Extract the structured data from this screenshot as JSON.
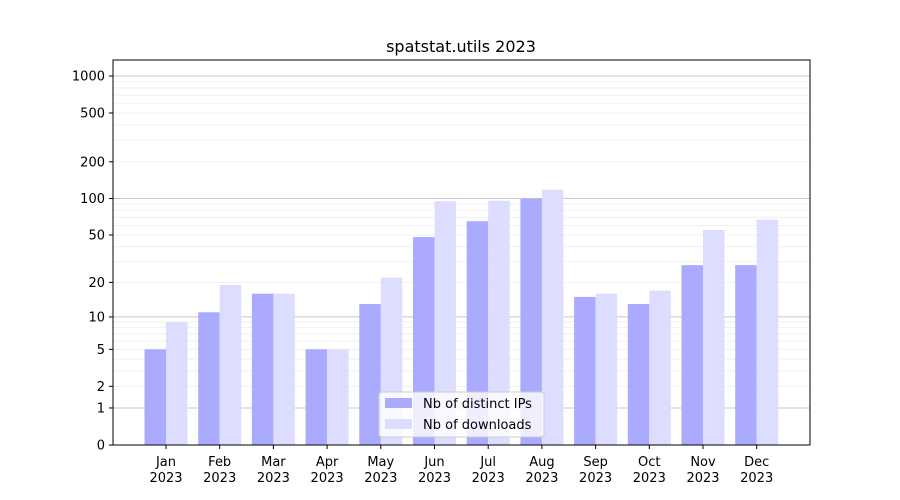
{
  "chart_data": {
    "type": "bar",
    "title": "spatstat.utils 2023",
    "xlabel": "",
    "ylabel": "",
    "yscale": "log(1+y)",
    "ylim": [
      0,
      1350
    ],
    "yticks": [
      0,
      1,
      2,
      5,
      10,
      20,
      50,
      100,
      200,
      500,
      1000
    ],
    "grid": true,
    "legend_position": "bottom-center",
    "categories": [
      "Jan\n2023",
      "Feb\n2023",
      "Mar\n2023",
      "Apr\n2023",
      "May\n2023",
      "Jun\n2023",
      "Jul\n2023",
      "Aug\n2023",
      "Sep\n2023",
      "Oct\n2023",
      "Nov\n2023",
      "Dec\n2023"
    ],
    "series": [
      {
        "name": "Nb of distinct IPs",
        "color": "#aaaaff",
        "values": [
          5,
          11,
          16,
          5,
          13,
          48,
          65,
          100,
          15,
          13,
          28,
          28
        ]
      },
      {
        "name": "Nb of downloads",
        "color": "#ddddff",
        "values": [
          9,
          19,
          16,
          5,
          22,
          95,
          96,
          118,
          16,
          17,
          55,
          67
        ]
      }
    ]
  }
}
